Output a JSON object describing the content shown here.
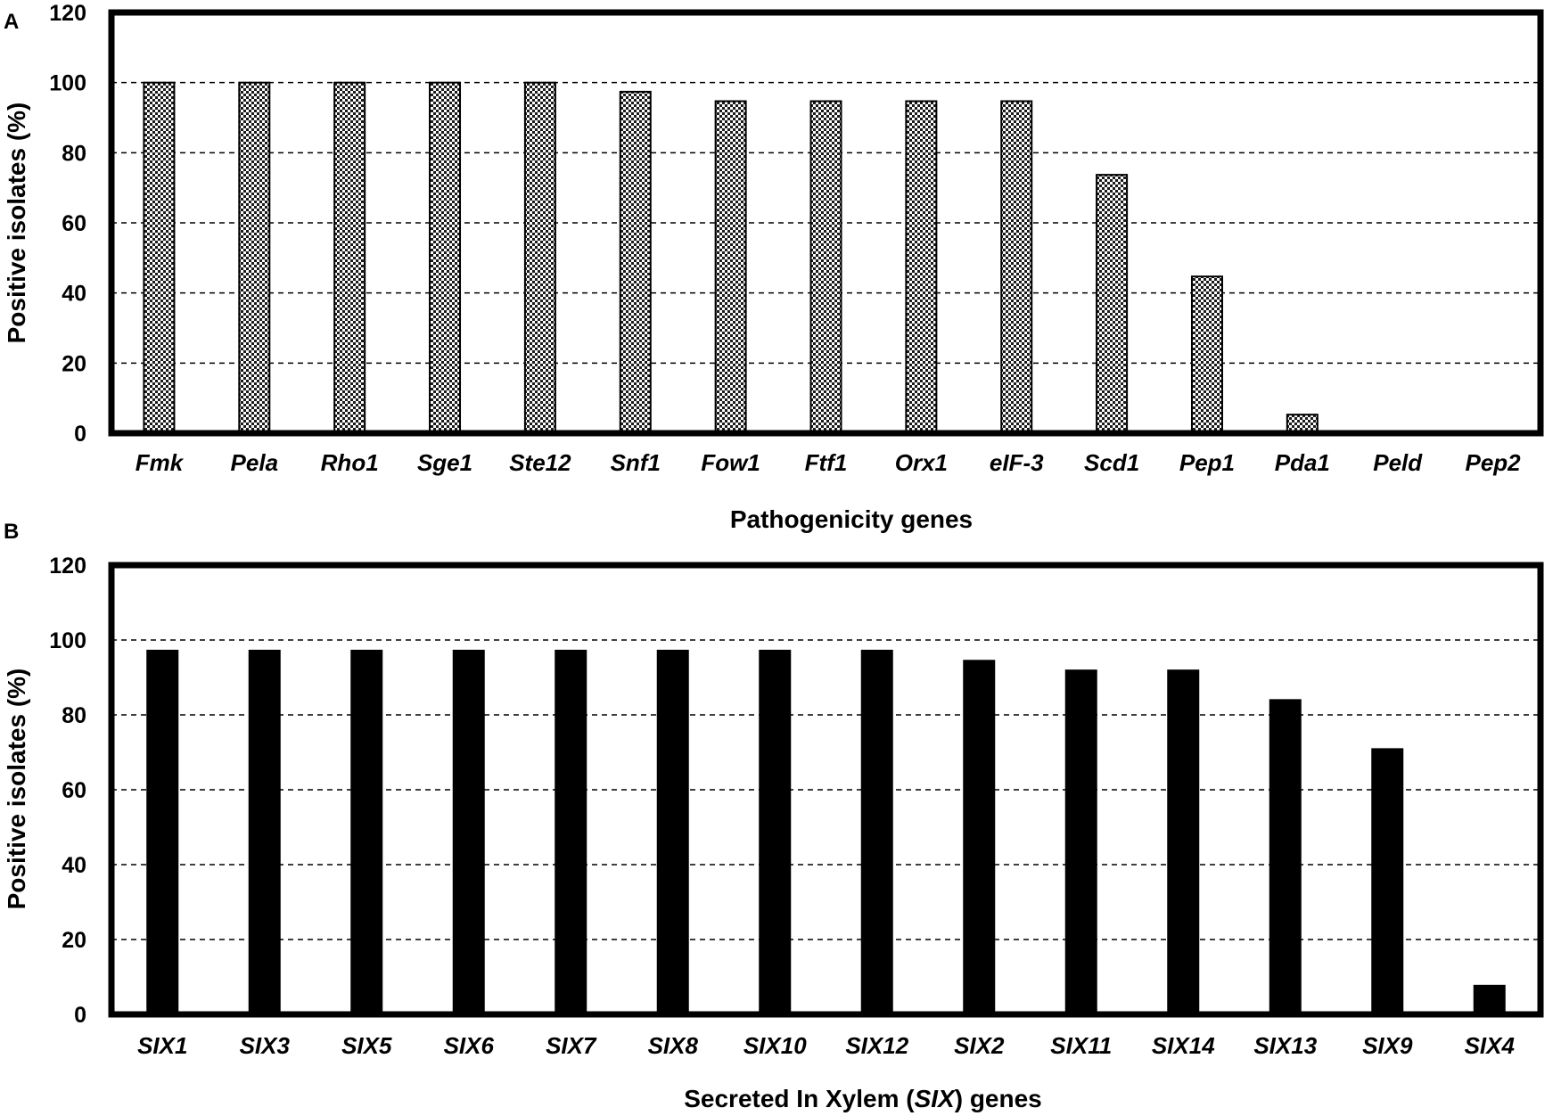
{
  "chart_data": [
    {
      "panel_label": "A",
      "type": "bar",
      "categories": [
        "Fmk",
        "Pela",
        "Rho1",
        "Sge1",
        "Ste12",
        "Snf1",
        "Fow1",
        "Ftf1",
        "Orx1",
        "eIF-3",
        "Scd1",
        "Pep1",
        "Pda1",
        "Peld",
        "Pep2"
      ],
      "values": [
        100,
        100,
        100,
        100,
        100,
        97.4,
        94.7,
        94.7,
        94.7,
        94.7,
        73.7,
        44.7,
        5.3,
        0,
        0
      ],
      "xlabel": "Pathogenicity genes",
      "ylabel": "Positive isolates (%)",
      "ylim": [
        0,
        120
      ],
      "yticks": [
        0,
        20,
        40,
        60,
        80,
        100,
        120
      ],
      "grid": "dashed horizontal",
      "bar_fill": "checkered",
      "bar_color": "#000000"
    },
    {
      "panel_label": "B",
      "type": "bar",
      "categories": [
        "SIX1",
        "SIX3",
        "SIX5",
        "SIX6",
        "SIX7",
        "SIX8",
        "SIX10",
        "SIX12",
        "SIX2",
        "SIX11",
        "SIX14",
        "SIX13",
        "SIX9",
        "SIX4"
      ],
      "values": [
        97.4,
        97.4,
        97.4,
        97.4,
        97.4,
        97.4,
        97.4,
        97.4,
        94.7,
        92.1,
        92.1,
        84.2,
        71.1,
        7.9
      ],
      "xlabel_parts": [
        "Secreted In Xylem (",
        "SIX",
        ") genes"
      ],
      "ylabel": "Positive isolates (%)",
      "ylim": [
        0,
        120
      ],
      "yticks": [
        0,
        20,
        40,
        60,
        80,
        100,
        120
      ],
      "grid": "dashed horizontal",
      "bar_fill": "solid",
      "bar_color": "#000000"
    }
  ]
}
